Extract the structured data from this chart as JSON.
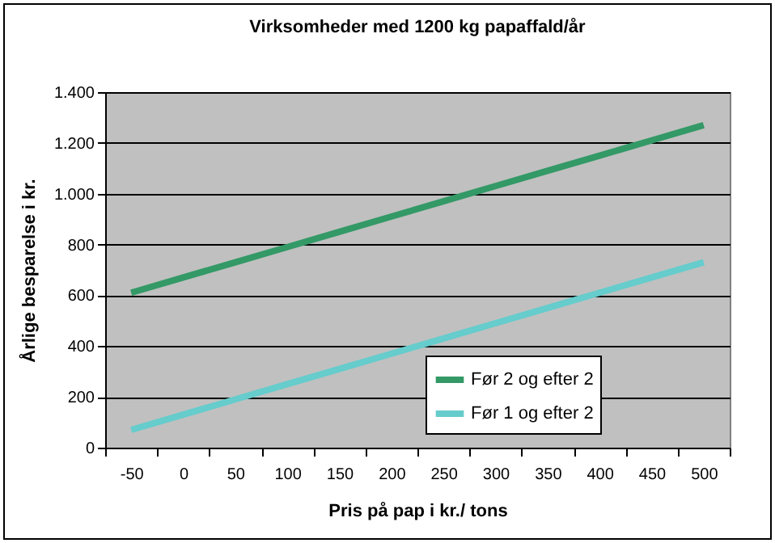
{
  "chart_data": {
    "type": "line",
    "title": "Virksomheder med 1200 kg papaffald/år",
    "xlabel": "Pris på pap i kr./ tons",
    "ylabel": "Årlige besparelse i kr.",
    "categories": [
      "-50",
      "0",
      "50",
      "100",
      "150",
      "200",
      "250",
      "300",
      "350",
      "400",
      "450",
      "500"
    ],
    "series": [
      {
        "name": "Før 2 og efter 2",
        "color": "#339966",
        "values": [
          610,
          670,
          730,
          790,
          850,
          910,
          970,
          1030,
          1090,
          1150,
          1210,
          1270
        ]
      },
      {
        "name": "Før 1 og efter 2",
        "color": "#66cccc",
        "values": [
          70,
          130,
          190,
          250,
          310,
          370,
          430,
          490,
          550,
          610,
          670,
          730
        ]
      }
    ],
    "ylim": [
      0,
      1400
    ],
    "yticks": [
      0,
      200,
      400,
      600,
      800,
      {
        "value": 1000,
        "label": "1.000"
      },
      {
        "value": 1200,
        "label": "1.200"
      },
      {
        "value": 1400,
        "label": "1.400"
      }
    ],
    "grid": "y",
    "legend": "bottom right",
    "line_style": "solid",
    "marker": "none"
  }
}
